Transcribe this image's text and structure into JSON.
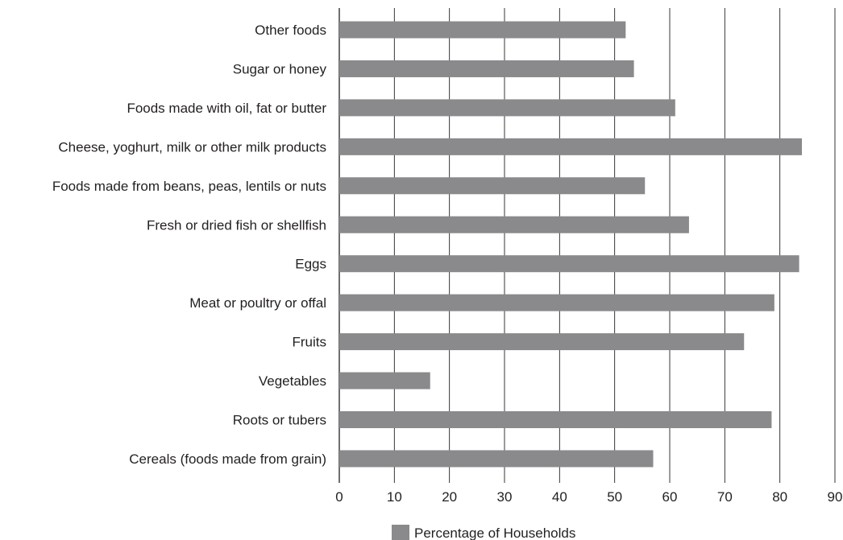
{
  "chart_data": {
    "type": "bar",
    "orientation": "horizontal",
    "title": "",
    "xlabel": "",
    "ylabel": "",
    "categories": [
      "Other foods",
      "Sugar or honey",
      "Foods made with oil, fat or butter",
      "Cheese, yoghurt, milk or other milk products",
      "Foods made from beans, peas, lentils or nuts",
      "Fresh or dried fish or shellfish",
      "Eggs",
      "Meat or poultry or offal",
      "Fruits",
      "Vegetables",
      "Roots or tubers",
      "Cereals (foods made from grain)"
    ],
    "series": [
      {
        "name": "Percentage of Households",
        "color": "#8a8a8c",
        "values": [
          52,
          53.5,
          61,
          84,
          55.5,
          63.5,
          83.5,
          79,
          73.5,
          16.5,
          78.5,
          57
        ]
      }
    ],
    "xlim": [
      0,
      90
    ],
    "xticks": [
      0,
      10,
      20,
      30,
      40,
      50,
      60,
      70,
      80,
      90
    ],
    "grid": "vertical",
    "legend_position": "bottom"
  }
}
